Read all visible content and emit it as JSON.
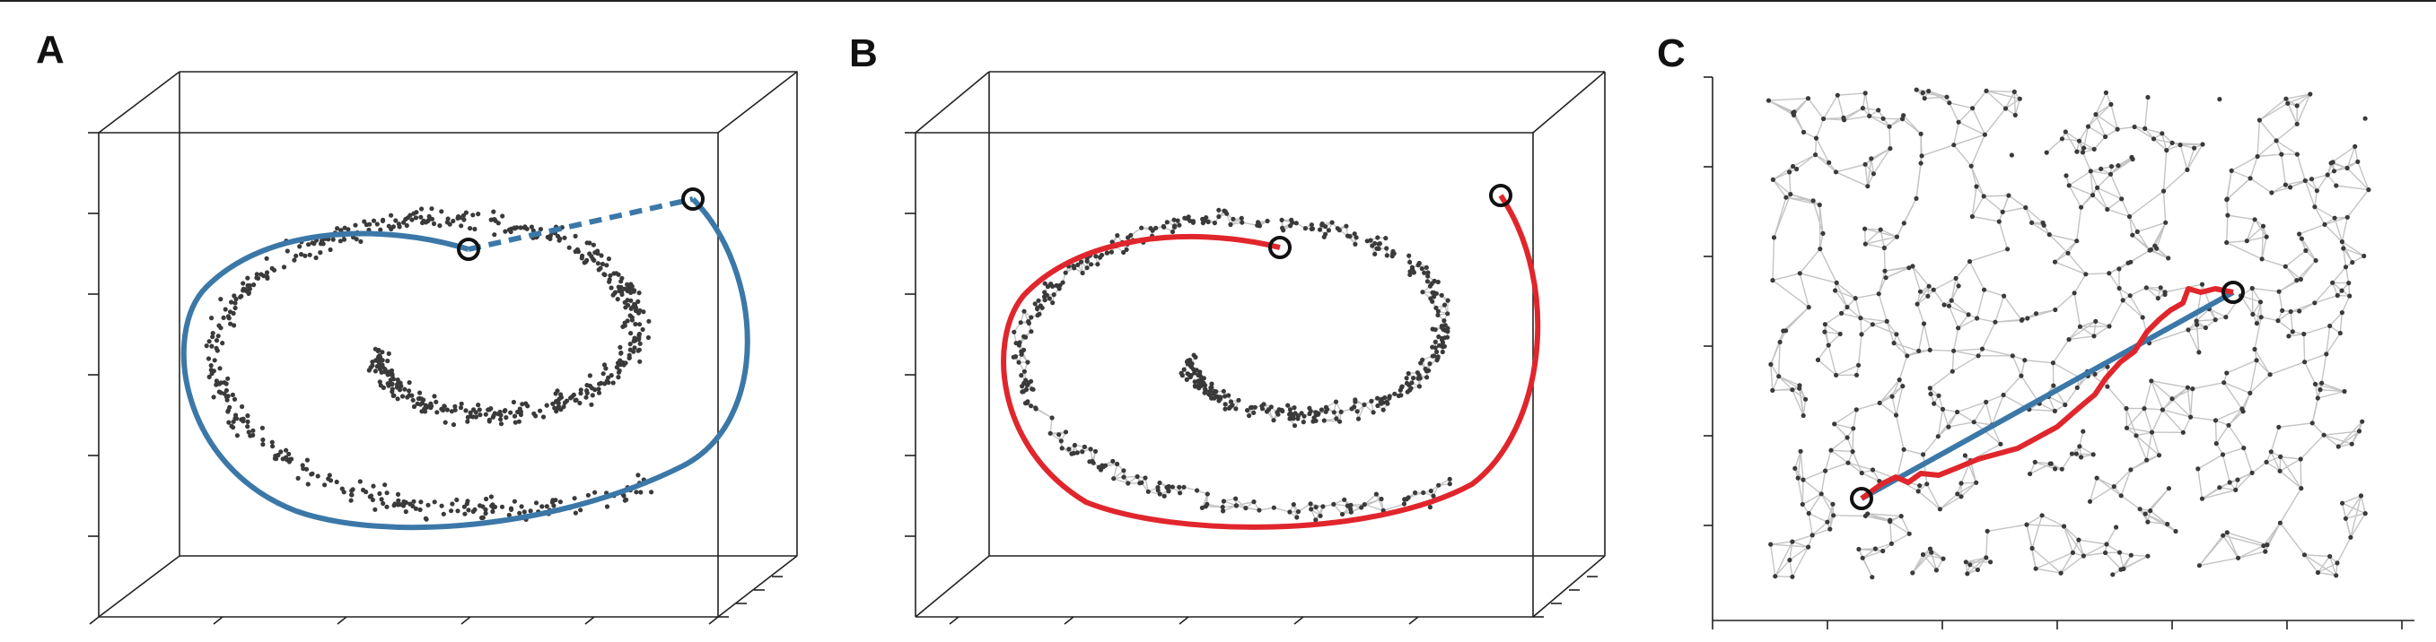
{
  "panels": [
    {
      "id": "A",
      "label": "A"
    },
    {
      "id": "B",
      "label": "B"
    },
    {
      "id": "C",
      "label": "C"
    }
  ],
  "colors": {
    "points": "#3a3a3a",
    "edges": "#c4c4c4",
    "geodesic_blue": "#3b78a8",
    "graph_path_red": "#e0262c",
    "endpoint_ring": "#111111",
    "frame": "#222222"
  }
}
